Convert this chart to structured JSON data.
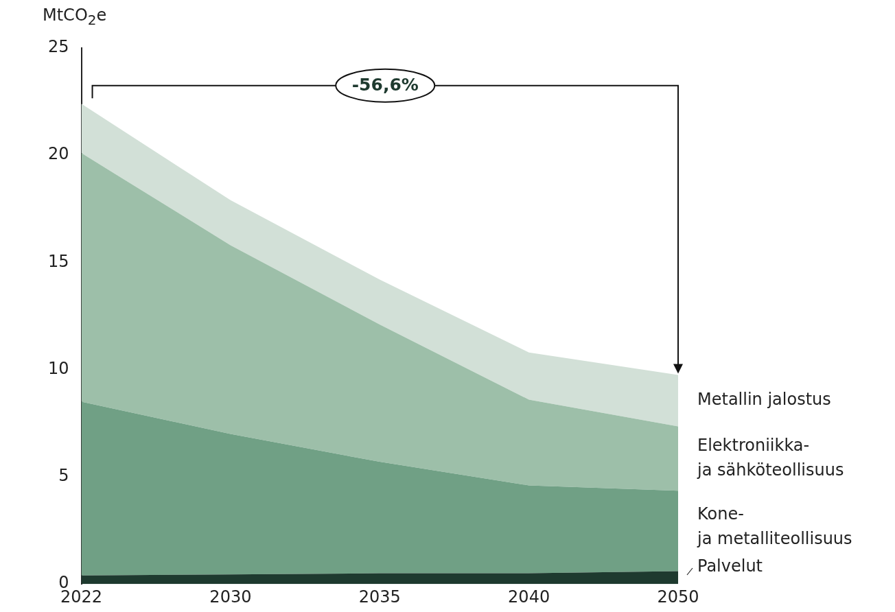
{
  "chart_data": {
    "type": "area",
    "stacked": true,
    "ylabel": "MtCO$_{2}$e",
    "categories": [
      "2022",
      "2030",
      "2035",
      "2040",
      "2050"
    ],
    "ylim": [
      0,
      25
    ],
    "yticks": [
      0,
      5,
      10,
      15,
      20,
      25
    ],
    "grid": false,
    "legend": false,
    "series": [
      {
        "name": "Palvelut",
        "color": "#1e3a2f",
        "values": [
          0.4,
          0.45,
          0.5,
          0.5,
          0.6
        ]
      },
      {
        "name": "Kone-\nja metalliteollisuus",
        "color": "#70a085",
        "values": [
          8.1,
          6.55,
          5.2,
          4.1,
          3.75
        ]
      },
      {
        "name": "Elektroniikka-\nja sähköteollisuus",
        "color": "#9dbfa9",
        "values": [
          11.6,
          8.8,
          6.4,
          4.0,
          3.0
        ]
      },
      {
        "name": "Metallin jalostus",
        "color": "#d2e0d7",
        "values": [
          2.3,
          2.1,
          2.1,
          2.2,
          2.4
        ]
      }
    ],
    "annotations": [
      "-56,6%"
    ]
  }
}
